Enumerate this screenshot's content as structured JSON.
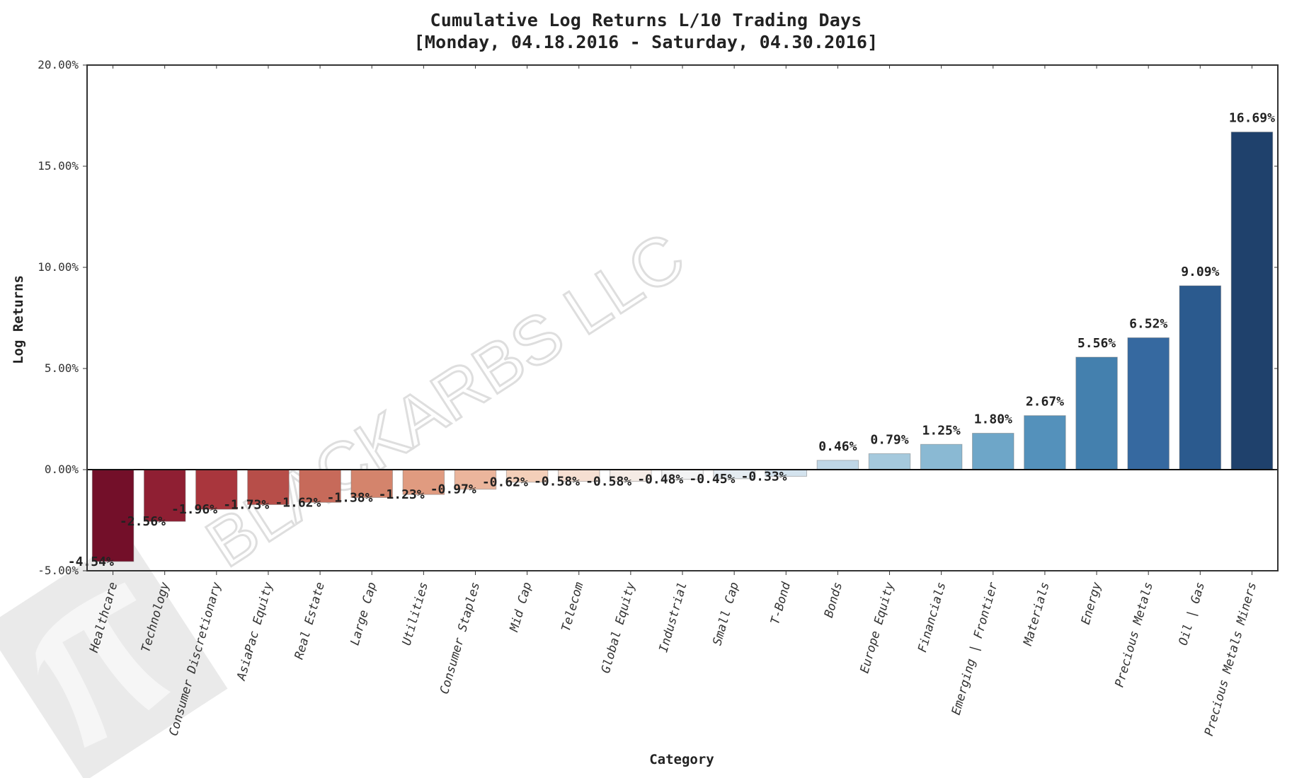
{
  "header": {
    "title_line1": "Cumulative Log Returns L/10 Trading Days",
    "title_line2": "[Monday, 04.18.2016 - Saturday, 04.30.2016]"
  },
  "watermark": {
    "text": "BLACKARBS LLC",
    "logo": "pi-logo-icon"
  },
  "chart_data": {
    "type": "bar",
    "title": "Cumulative Log Returns L/10 Trading Days [Monday, 04.18.2016 - Saturday, 04.30.2016]",
    "xlabel": "Category",
    "ylabel": "Log Returns",
    "ylim": [
      -5,
      20
    ],
    "yticks": [
      "-5.00%",
      "0.00%",
      "5.00%",
      "10.00%",
      "15.00%",
      "20.00%"
    ],
    "ytick_values": [
      -5,
      0,
      5,
      10,
      15,
      20
    ],
    "grid": false,
    "legend": null,
    "categories": [
      "Healthcare",
      "Technology",
      "Consumer Discretionary",
      "AsiaPac Equity",
      "Real Estate",
      "Large Cap",
      "Utilities",
      "Consumer Staples",
      "Mid Cap",
      "Telecom",
      "Global Equity",
      "Industrial",
      "Small Cap",
      "T-Bond",
      "Bonds",
      "Europe Equity",
      "Financials",
      "Emerging | Frontier",
      "Materials",
      "Energy",
      "Precious Metals",
      "Oil | Gas",
      "Precious Metals Miners"
    ],
    "values": [
      -4.54,
      -2.56,
      -1.96,
      -1.73,
      -1.62,
      -1.38,
      -1.23,
      -0.97,
      -0.62,
      -0.58,
      -0.58,
      -0.48,
      -0.45,
      -0.33,
      0.46,
      0.79,
      1.25,
      1.8,
      2.67,
      5.56,
      6.52,
      9.09,
      16.69
    ],
    "value_labels": [
      "-4.54%",
      "-2.56%",
      "-1.96%",
      "-1.73%",
      "-1.62%",
      "-1.38%",
      "-1.23%",
      "-0.97%",
      "-0.62%",
      "-0.58%",
      "-0.58%",
      "-0.48%",
      "-0.45%",
      "-0.33%",
      "0.46%",
      "0.79%",
      "1.25%",
      "1.80%",
      "2.67%",
      "5.56%",
      "6.52%",
      "9.09%",
      "16.69%"
    ],
    "colors": [
      "#730f29",
      "#8f1f33",
      "#a9363d",
      "#b74e49",
      "#c76a5a",
      "#d4846c",
      "#e09b80",
      "#ebb59c",
      "#f4cfb9",
      "#f6dfd2",
      "#f5ebe5",
      "#f2f3f4",
      "#e4ebf1",
      "#d4e3ee",
      "#bfd6e6",
      "#a5c9dd",
      "#8ab9d3",
      "#6ea6c8",
      "#5491bb",
      "#4480ae",
      "#3669a0",
      "#2b5a8e",
      "#1f416c"
    ]
  }
}
